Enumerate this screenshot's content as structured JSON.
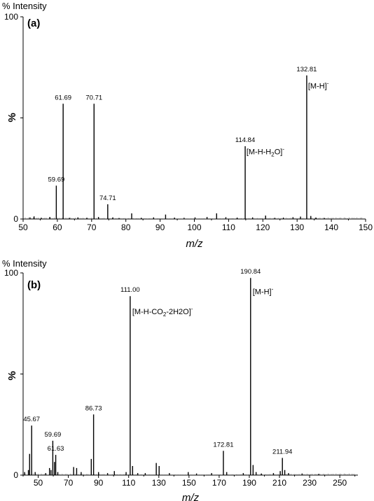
{
  "chart_data": [
    {
      "type": "bar",
      "panel_label": "(a)",
      "ytitle_top": "% Intensity",
      "ylabel": "%",
      "xlabel": "m/z",
      "xlim": [
        50,
        150
      ],
      "ylim": [
        0,
        100
      ],
      "xticks": [
        "50",
        "60",
        "70",
        "80",
        "90",
        "100",
        "110",
        "120",
        "130",
        "140",
        "150"
      ],
      "yticks": [
        "0",
        "100"
      ],
      "peaks": [
        {
          "x": 52.0,
          "y": 0.8
        },
        {
          "x": 53.2,
          "y": 1.3
        },
        {
          "x": 55.3,
          "y": 0.6
        },
        {
          "x": 57.8,
          "y": 1.0
        },
        {
          "x": 59.69,
          "y": 16.5
        },
        {
          "x": 61.69,
          "y": 57.0
        },
        {
          "x": 63.5,
          "y": 0.6
        },
        {
          "x": 66.0,
          "y": 0.8
        },
        {
          "x": 68.6,
          "y": 0.6
        },
        {
          "x": 70.71,
          "y": 57.0
        },
        {
          "x": 72.0,
          "y": 1.0
        },
        {
          "x": 74.71,
          "y": 7.3
        },
        {
          "x": 76.2,
          "y": 0.8
        },
        {
          "x": 78.0,
          "y": 0.5
        },
        {
          "x": 81.7,
          "y": 2.8
        },
        {
          "x": 84.5,
          "y": 0.6
        },
        {
          "x": 88.1,
          "y": 0.8
        },
        {
          "x": 91.6,
          "y": 2.2
        },
        {
          "x": 94.2,
          "y": 0.7
        },
        {
          "x": 97.0,
          "y": 0.6
        },
        {
          "x": 100.2,
          "y": 0.8
        },
        {
          "x": 103.7,
          "y": 1.0
        },
        {
          "x": 106.5,
          "y": 2.8
        },
        {
          "x": 109.2,
          "y": 0.9
        },
        {
          "x": 112.5,
          "y": 0.7
        },
        {
          "x": 114.84,
          "y": 36.0
        },
        {
          "x": 117.0,
          "y": 0.8
        },
        {
          "x": 120.8,
          "y": 1.7
        },
        {
          "x": 123.5,
          "y": 0.6
        },
        {
          "x": 126.0,
          "y": 0.7
        },
        {
          "x": 128.8,
          "y": 0.9
        },
        {
          "x": 131.0,
          "y": 1.2
        },
        {
          "x": 132.81,
          "y": 71.0
        },
        {
          "x": 134.0,
          "y": 1.5
        },
        {
          "x": 135.5,
          "y": 0.7
        },
        {
          "x": 138.0,
          "y": 0.5
        }
      ],
      "peak_labels": [
        {
          "text": "59.69",
          "x": 59.69,
          "y": 16.5
        },
        {
          "text": "61.69",
          "x": 61.69,
          "y": 57.0
        },
        {
          "text": "70.71",
          "x": 70.71,
          "y": 57.0
        },
        {
          "text": "74.71",
          "x": 74.71,
          "y": 7.3
        },
        {
          "text": "114.84",
          "x": 114.84,
          "y": 36.0
        },
        {
          "text": "132.81",
          "x": 132.81,
          "y": 71.0
        }
      ],
      "ion_labels": [
        {
          "base": "[M-H]",
          "sub": "",
          "tail": "",
          "sup": "-",
          "x": 133.2,
          "y": 64.5
        },
        {
          "base": "[M-H-H",
          "sub": "2",
          "tail": "O]",
          "sup": "-",
          "x": 115.2,
          "y": 32.0
        }
      ]
    },
    {
      "type": "bar",
      "panel_label": "(b)",
      "ytitle_top": "% Intensity",
      "ylabel": "%",
      "xlabel": "m/z",
      "xlim": [
        40,
        262
      ],
      "ylim": [
        0,
        100
      ],
      "xticks": [
        "50",
        "70",
        "90",
        "110",
        "130",
        "150",
        "170",
        "190",
        "210",
        "230",
        "250"
      ],
      "yticks": [
        "0",
        "100"
      ],
      "peaks": [
        {
          "x": 41.0,
          "y": 1.5
        },
        {
          "x": 43.5,
          "y": 2.5
        },
        {
          "x": 44.3,
          "y": 10.5
        },
        {
          "x": 45.67,
          "y": 24.5
        },
        {
          "x": 48.0,
          "y": 1.5
        },
        {
          "x": 55.0,
          "y": 1.0
        },
        {
          "x": 57.5,
          "y": 3.5
        },
        {
          "x": 58.5,
          "y": 2.5
        },
        {
          "x": 59.69,
          "y": 17.0
        },
        {
          "x": 60.8,
          "y": 6.5
        },
        {
          "x": 61.63,
          "y": 10.0
        },
        {
          "x": 63.0,
          "y": 1.5
        },
        {
          "x": 73.5,
          "y": 4.0
        },
        {
          "x": 75.5,
          "y": 3.5
        },
        {
          "x": 78.5,
          "y": 1.5
        },
        {
          "x": 85.2,
          "y": 8.0
        },
        {
          "x": 86.73,
          "y": 30.0
        },
        {
          "x": 90.0,
          "y": 1.5
        },
        {
          "x": 96.0,
          "y": 1.0
        },
        {
          "x": 100.5,
          "y": 2.0
        },
        {
          "x": 108.3,
          "y": 1.5
        },
        {
          "x": 111.0,
          "y": 88.5
        },
        {
          "x": 112.6,
          "y": 4.5
        },
        {
          "x": 116.0,
          "y": 1.0
        },
        {
          "x": 121.0,
          "y": 1.0
        },
        {
          "x": 128.3,
          "y": 6.0
        },
        {
          "x": 130.2,
          "y": 4.5
        },
        {
          "x": 137.0,
          "y": 1.0
        },
        {
          "x": 149.5,
          "y": 1.5
        },
        {
          "x": 155.0,
          "y": 0.8
        },
        {
          "x": 165.0,
          "y": 1.0
        },
        {
          "x": 172.81,
          "y": 12.0
        },
        {
          "x": 175.0,
          "y": 1.5
        },
        {
          "x": 186.0,
          "y": 1.0
        },
        {
          "x": 190.84,
          "y": 97.5
        },
        {
          "x": 192.5,
          "y": 5.0
        },
        {
          "x": 194.5,
          "y": 1.5
        },
        {
          "x": 198.0,
          "y": 0.8
        },
        {
          "x": 206.0,
          "y": 1.0
        },
        {
          "x": 210.5,
          "y": 2.0
        },
        {
          "x": 211.94,
          "y": 8.5
        },
        {
          "x": 213.5,
          "y": 2.5
        },
        {
          "x": 216.0,
          "y": 1.0
        },
        {
          "x": 225.0,
          "y": 0.8
        },
        {
          "x": 236.0,
          "y": 0.6
        }
      ],
      "peak_labels": [
        {
          "text": "45.67",
          "x": 45.67,
          "y": 24.5
        },
        {
          "text": "59.69",
          "x": 59.69,
          "y": 17.0
        },
        {
          "text": "61.63",
          "x": 61.63,
          "y": 10.0
        },
        {
          "text": "86.73",
          "x": 86.73,
          "y": 30.0
        },
        {
          "text": "111.00",
          "x": 111.0,
          "y": 88.5
        },
        {
          "text": "172.81",
          "x": 172.81,
          "y": 12.0
        },
        {
          "text": "190.84",
          "x": 190.84,
          "y": 97.5
        },
        {
          "text": "211.94",
          "x": 211.94,
          "y": 8.5
        }
      ],
      "ion_labels": [
        {
          "base": "[M-H]",
          "sub": "",
          "tail": "",
          "sup": "-",
          "x": 192.2,
          "y": 89.5
        },
        {
          "base": "[M-H-CO",
          "sub": "2",
          "tail": "-2H2O]",
          "sup": "-",
          "x": 112.4,
          "y": 79.5
        }
      ]
    }
  ]
}
